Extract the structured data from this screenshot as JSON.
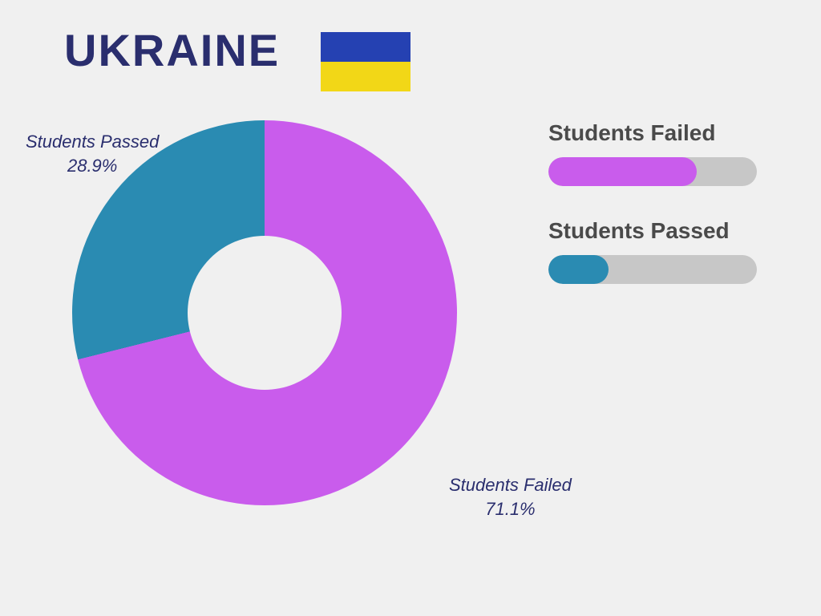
{
  "title": "UKRAINE",
  "flag": {
    "top_color": "#2541b2",
    "bottom_color": "#f2d717"
  },
  "donut": {
    "type": "donut",
    "background_color": "#f0f0f0",
    "hole_ratio": 0.4,
    "slices": [
      {
        "name": "Students Failed",
        "value": 71.1,
        "color": "#c95cec"
      },
      {
        "name": "Students Passed",
        "value": 28.9,
        "color": "#2a8bb2"
      }
    ],
    "start_angle_deg": 0
  },
  "labels": {
    "passed_line1": "Students Passed",
    "passed_line2": "28.9%",
    "failed_line1": "Students Failed",
    "failed_line2": "71.1%",
    "label_color": "#2a2e6e",
    "label_fontsize": 22
  },
  "legend": {
    "items": [
      {
        "label": "Students Failed",
        "percent": 71.1,
        "color": "#c95cec"
      },
      {
        "label": "Students Passed",
        "percent": 28.9,
        "color": "#2a8bb2"
      }
    ],
    "track_color": "#c7c7c7",
    "label_color": "#4a4a4a",
    "label_fontsize": 28
  }
}
